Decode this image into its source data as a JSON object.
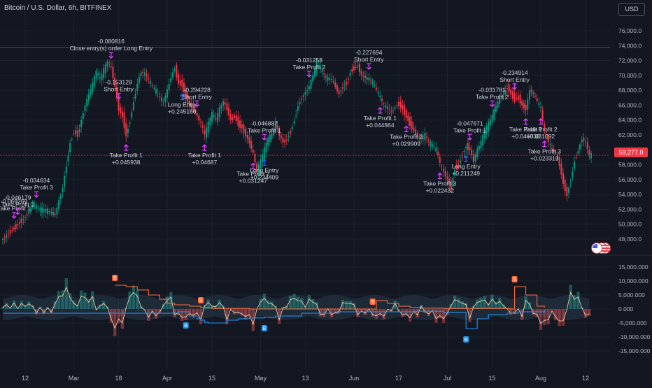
{
  "header": {
    "symbol_title": "Bitcoin / U.S. Dollar, 6h, BITFINEX",
    "currency_button": "USD",
    "last_price": "59,277.0"
  },
  "colors": {
    "background": "#131722",
    "grid": "#1e222d",
    "up_candle": "#089981",
    "down_candle": "#f23645",
    "signal_magenta": "#e040fb",
    "signal_blue": "#2962ff",
    "price_badge": "#f23645",
    "osc_teal": "#26a69a",
    "osc_red": "#ef5350",
    "osc_line": "#f5deb3",
    "resistance_line": "#ff6d3a",
    "support_line": "#2196f3"
  },
  "chart_data": [
    {
      "type": "candlestick",
      "price_axis": {
        "range": [
          46500,
          77500
        ],
        "ticks": [
          "76,000.0",
          "74,000.0",
          "72,000.0",
          "70,000.0",
          "68,000.0",
          "66,000.0",
          "64,000.0",
          "62,000.0",
          "60,000.0",
          "58,000.0",
          "56,000.0",
          "54,000.0",
          "52,000.0",
          "50,000.0",
          "48,000.0"
        ],
        "tick_values": [
          76000,
          74000,
          72000,
          70000,
          68000,
          66000,
          64000,
          62000,
          60000,
          58000,
          56000,
          54000,
          52000,
          50000,
          48000
        ]
      },
      "time_axis": {
        "labels": [
          "12",
          "Mar",
          "18",
          "Apr",
          "15",
          "May",
          "13",
          "Jun",
          "17",
          "Jul",
          "15",
          "Aug",
          "12"
        ],
        "label_index": [
          6,
          19,
          31,
          44,
          56,
          69,
          81,
          94,
          106,
          119,
          131,
          144,
          156
        ]
      },
      "close_path": [
        [
          0,
          48000
        ],
        [
          3,
          49500
        ],
        [
          6,
          51000
        ],
        [
          8,
          52600
        ],
        [
          10,
          52000
        ],
        [
          12,
          51800
        ],
        [
          14,
          51300
        ],
        [
          16,
          55000
        ],
        [
          17,
          58000
        ],
        [
          18,
          61000
        ],
        [
          19,
          62500
        ],
        [
          20,
          62000
        ],
        [
          22,
          66000
        ],
        [
          24,
          68800
        ],
        [
          25,
          70500
        ],
        [
          26,
          69500
        ],
        [
          28,
          71800
        ],
        [
          29,
          71000
        ],
        [
          30,
          68500
        ],
        [
          31,
          65500
        ],
        [
          32,
          64500
        ],
        [
          33,
          62000
        ],
        [
          34,
          64000
        ],
        [
          35,
          66500
        ],
        [
          36,
          69000
        ],
        [
          37,
          70500
        ],
        [
          38,
          70200
        ],
        [
          40,
          68500
        ],
        [
          42,
          67000
        ],
        [
          43,
          66500
        ],
        [
          44,
          68000
        ],
        [
          45,
          69800
        ],
        [
          46,
          71000
        ],
        [
          47,
          69000
        ],
        [
          48,
          68800
        ],
        [
          49,
          67000
        ],
        [
          50,
          66000
        ],
        [
          51,
          65500
        ],
        [
          52,
          64500
        ],
        [
          53,
          63500
        ],
        [
          54,
          62000
        ],
        [
          55,
          63500
        ],
        [
          56,
          64800
        ],
        [
          57,
          64000
        ],
        [
          58,
          65500
        ],
        [
          59,
          66500
        ],
        [
          60,
          65500
        ],
        [
          61,
          64000
        ],
        [
          62,
          64500
        ],
        [
          63,
          63500
        ],
        [
          64,
          63000
        ],
        [
          65,
          62000
        ],
        [
          66,
          61000
        ],
        [
          67,
          59500
        ],
        [
          68,
          57000
        ],
        [
          69,
          58500
        ],
        [
          70,
          60000
        ],
        [
          71,
          61500
        ],
        [
          72,
          62000
        ],
        [
          73,
          63500
        ],
        [
          74,
          62000
        ],
        [
          75,
          61000
        ],
        [
          76,
          61500
        ],
        [
          77,
          62500
        ],
        [
          78,
          64000
        ],
        [
          79,
          66000
        ],
        [
          80,
          67000
        ],
        [
          81,
          67800
        ],
        [
          82,
          68500
        ],
        [
          83,
          70000
        ],
        [
          84,
          71500
        ],
        [
          85,
          71000
        ],
        [
          86,
          70000
        ],
        [
          87,
          69500
        ],
        [
          88,
          69500
        ],
        [
          89,
          68500
        ],
        [
          90,
          67500
        ],
        [
          91,
          68500
        ],
        [
          92,
          69000
        ],
        [
          93,
          70500
        ],
        [
          94,
          71000
        ],
        [
          95,
          71300
        ],
        [
          96,
          70000
        ],
        [
          97,
          69700
        ],
        [
          98,
          69500
        ],
        [
          99,
          69000
        ],
        [
          100,
          68000
        ],
        [
          101,
          67000
        ],
        [
          102,
          66000
        ],
        [
          103,
          65500
        ],
        [
          104,
          65000
        ],
        [
          105,
          65800
        ],
        [
          106,
          66200
        ],
        [
          107,
          65500
        ],
        [
          108,
          64500
        ],
        [
          109,
          63500
        ],
        [
          110,
          62500
        ],
        [
          111,
          61800
        ],
        [
          112,
          61500
        ],
        [
          113,
          62000
        ],
        [
          114,
          61000
        ],
        [
          115,
          60500
        ],
        [
          116,
          60000
        ],
        [
          117,
          58200
        ],
        [
          118,
          57000
        ],
        [
          119,
          56000
        ],
        [
          120,
          55000
        ],
        [
          121,
          57500
        ],
        [
          122,
          58000
        ],
        [
          123,
          59500
        ],
        [
          124,
          60500
        ],
        [
          125,
          60000
        ],
        [
          126,
          58500
        ],
        [
          127,
          60000
        ],
        [
          128,
          61000
        ],
        [
          129,
          62500
        ],
        [
          130,
          63500
        ],
        [
          131,
          64500
        ],
        [
          132,
          65800
        ],
        [
          133,
          67000
        ],
        [
          134,
          67500
        ],
        [
          135,
          68500
        ],
        [
          136,
          67500
        ],
        [
          137,
          66800
        ],
        [
          138,
          67000
        ],
        [
          139,
          66000
        ],
        [
          140,
          65500
        ],
        [
          141,
          68000
        ],
        [
          142,
          67500
        ],
        [
          143,
          66500
        ],
        [
          144,
          65500
        ],
        [
          145,
          62500
        ],
        [
          146,
          61000
        ],
        [
          147,
          60000
        ],
        [
          148,
          59500
        ],
        [
          149,
          58000
        ],
        [
          150,
          55500
        ],
        [
          151,
          54000
        ],
        [
          152,
          56000
        ],
        [
          153,
          58500
        ],
        [
          154,
          60000
        ],
        [
          155,
          61500
        ],
        [
          156,
          61000
        ],
        [
          157,
          59277
        ]
      ],
      "last_price": 59277,
      "price_lines": [
        73800,
        59277
      ],
      "signals": [
        {
          "idx": 3,
          "dir": "down",
          "value": "-0.069269",
          "label": "Take Profit 1"
        },
        {
          "idx": 4,
          "dir": "down",
          "value": "-0.046179",
          "label": "Take Profit 2"
        },
        {
          "idx": 9,
          "dir": "down",
          "value": "-0.034634",
          "label": "Take Profit 3"
        },
        {
          "idx": 29,
          "dir": "down",
          "value": "-0.080816",
          "label": "Close entry(s) order Long Entry"
        },
        {
          "idx": 31,
          "dir": "down",
          "value": "-0.153129",
          "label": "Short Entry"
        },
        {
          "idx": 33,
          "dir": "up",
          "value": "+0.045938",
          "label": "Take Profit 1"
        },
        {
          "idx": 48,
          "dir": "up",
          "value": "+0.245166",
          "label": "Long Entry"
        },
        {
          "idx": 52,
          "dir": "down",
          "value": "-0.294228",
          "label": "Short Entry"
        },
        {
          "idx": 54,
          "dir": "up",
          "value": "+0.04687",
          "label": "Take Profit 1"
        },
        {
          "idx": 67,
          "dir": "up",
          "value": "+0.031247",
          "label": "Take Profit 2"
        },
        {
          "idx": 70,
          "dir": "up",
          "value": "+0.234409",
          "label": "Long Entry"
        },
        {
          "idx": 70,
          "dir": "down",
          "value": "-0.046887",
          "label": "Take Profit 1"
        },
        {
          "idx": 82,
          "dir": "down",
          "value": "-0.031258",
          "label": "Take Profit 2"
        },
        {
          "idx": 98,
          "dir": "down",
          "value": "-0.227694",
          "label": "Short Entry"
        },
        {
          "idx": 101,
          "dir": "up",
          "value": "+0.044864",
          "label": "Take Profit 1"
        },
        {
          "idx": 108,
          "dir": "up",
          "value": "+0.029909",
          "label": "Take Profit 2"
        },
        {
          "idx": 117,
          "dir": "up",
          "value": "+0.022432",
          "label": "Take Profit 3"
        },
        {
          "idx": 124,
          "dir": "up",
          "value": "+0.211249",
          "label": "Long Entry"
        },
        {
          "idx": 125,
          "dir": "down",
          "value": "-0.047671",
          "label": "Take Profit 1"
        },
        {
          "idx": 131,
          "dir": "down",
          "value": "-0.031781",
          "label": "Take Profit 2"
        },
        {
          "idx": 137,
          "dir": "down",
          "value": "-0.234914",
          "label": "Short Entry"
        },
        {
          "idx": 140,
          "dir": "up",
          "value": "+0.046638",
          "label": "Take Profit 1"
        },
        {
          "idx": 144,
          "dir": "up",
          "value": "+0.031092",
          "label": "Take Profit 2"
        },
        {
          "idx": 145,
          "dir": "up",
          "value": "+0.023319",
          "label": "Take Profit 3"
        }
      ]
    },
    {
      "type": "area",
      "value_axis": {
        "range": [
          -17500,
          17500
        ],
        "ticks": [
          "15,000.000",
          "10,000.000",
          "5,000.000",
          "0.000",
          "-5,000.000",
          "-10,000.000",
          "-15,000.000"
        ],
        "tick_values": [
          15000,
          10000,
          5000,
          0,
          -5000,
          -10000,
          -15000
        ]
      },
      "resistance_path": [
        [
          30,
          8500
        ],
        [
          33,
          8000
        ],
        [
          36,
          6800
        ],
        [
          39,
          5000
        ],
        [
          42,
          3500
        ],
        [
          44,
          2000
        ],
        [
          46,
          1500
        ],
        [
          50,
          1000
        ],
        [
          53,
          500
        ],
        [
          56,
          200
        ],
        [
          66,
          0
        ],
        [
          99,
          0
        ],
        [
          100,
          3000
        ],
        [
          103,
          2000
        ],
        [
          106,
          1000
        ],
        [
          109,
          500
        ],
        [
          112,
          300
        ],
        [
          118,
          200
        ],
        [
          136,
          0
        ],
        [
          137,
          8000
        ],
        [
          140,
          5000
        ],
        [
          143,
          1000
        ],
        [
          145,
          600
        ]
      ],
      "support_path": [
        [
          0,
          -1500
        ],
        [
          30,
          -1500
        ],
        [
          47,
          -1000
        ],
        [
          50,
          -2500
        ],
        [
          52,
          -3500
        ],
        [
          53,
          -4000
        ],
        [
          54,
          -4800
        ],
        [
          55,
          -5000
        ],
        [
          60,
          -4000
        ],
        [
          63,
          -3500
        ],
        [
          66,
          -3200
        ],
        [
          70,
          -3000
        ],
        [
          73,
          -2500
        ],
        [
          80,
          -1500
        ],
        [
          90,
          -1000
        ],
        [
          110,
          -800
        ],
        [
          118,
          -1200
        ],
        [
          124,
          -7000
        ],
        [
          127,
          -3500
        ],
        [
          130,
          -2000
        ],
        [
          135,
          -1500
        ],
        [
          138,
          -1000
        ],
        [
          145,
          -500
        ]
      ],
      "resistance_markers": [
        {
          "idx": 30,
          "letter": "S"
        },
        {
          "idx": 53,
          "letter": "S"
        },
        {
          "idx": 99,
          "letter": "S"
        },
        {
          "idx": 137,
          "letter": "S"
        }
      ],
      "support_markers": [
        {
          "idx": 49,
          "letter": "B"
        },
        {
          "idx": 70,
          "letter": "B"
        },
        {
          "idx": 124,
          "letter": "B"
        }
      ]
    }
  ]
}
